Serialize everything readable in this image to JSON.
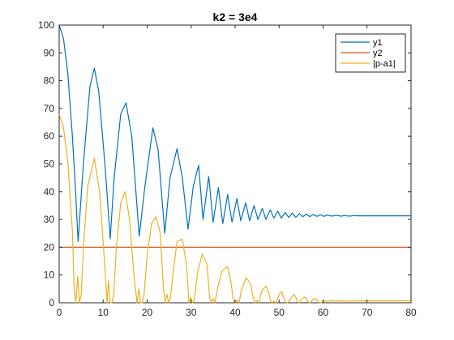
{
  "chart_data": {
    "type": "line",
    "title": "k2 = 3e4",
    "xlabel": "",
    "ylabel": "",
    "xlim": [
      0,
      80
    ],
    "ylim": [
      0,
      100
    ],
    "xticks": [
      0,
      10,
      20,
      30,
      40,
      50,
      60,
      70,
      80
    ],
    "yticks": [
      0,
      10,
      20,
      30,
      40,
      50,
      60,
      70,
      80,
      90,
      100
    ],
    "grid": false,
    "legend_location": "top-right",
    "series": [
      {
        "name": "y1",
        "color": "#0072BD",
        "x": [
          0,
          1,
          2,
          3,
          3.8,
          4.3,
          5.5,
          7,
          8,
          9,
          10.5,
          11.6,
          12.5,
          14,
          15.2,
          16.5,
          18.2,
          19.5,
          21.3,
          22.5,
          24,
          25.2,
          26.8,
          28,
          29.3,
          30.5,
          31.7,
          32.7,
          34,
          35,
          36.2,
          37.2,
          38.3,
          39.3,
          40.4,
          41.3,
          42.4,
          43.3,
          44.3,
          45.2,
          46.2,
          47,
          48,
          48.8,
          49.7,
          50.5,
          51.4,
          52.2,
          53,
          53.8,
          54.6,
          55.4,
          56.2,
          57,
          57.8,
          58.6,
          59.4,
          60.2,
          61,
          62,
          63,
          64,
          65,
          66,
          67,
          68,
          70,
          72,
          74,
          76,
          78,
          80
        ],
        "y": [
          100,
          95,
          82,
          60,
          38,
          22,
          50,
          78,
          84.5,
          76,
          48,
          23,
          45,
          68,
          72,
          60,
          24,
          42,
          63,
          55,
          25,
          45,
          55.5,
          45,
          26.5,
          42,
          49.5,
          30,
          45.5,
          29,
          41.5,
          28.5,
          39,
          29,
          37.5,
          29.5,
          36,
          29.5,
          35,
          30,
          34,
          30,
          33.5,
          30.5,
          33,
          30.5,
          32.5,
          30.7,
          32.3,
          30.8,
          32.1,
          31,
          31.9,
          31,
          31.8,
          31.1,
          31.7,
          31.1,
          31.6,
          31.2,
          31.5,
          31.2,
          31.4,
          31.2,
          31.4,
          31.3,
          31.3,
          31.3,
          31.3,
          31.3,
          31.3,
          31.3
        ]
      },
      {
        "name": "y2",
        "color": "#D95319",
        "x": [
          0,
          80
        ],
        "y": [
          20,
          20
        ]
      },
      {
        "name": "|p-a1|",
        "color": "#EDB120",
        "x": [
          0,
          1,
          2,
          3,
          3.4,
          3.8,
          4.2,
          4.6,
          5,
          5.6,
          6.5,
          8,
          9.2,
          10.3,
          10.9,
          11.2,
          11.6,
          12,
          12.4,
          13,
          14,
          15,
          16,
          17,
          17.7,
          18.1,
          18.5,
          18.9,
          19.3,
          20,
          21,
          22,
          23,
          23.7,
          24.1,
          24.5,
          24.9,
          25.3,
          26,
          26.8,
          28,
          29,
          29.5,
          29.9,
          30.3,
          30.7,
          31.5,
          32.5,
          33.6,
          34.2,
          34.6,
          35.0,
          35.4,
          36,
          37,
          38.3,
          39,
          39.6,
          40.1,
          40.5,
          40.9,
          41.5,
          42.5,
          43.5,
          44.1,
          44.6,
          45,
          45.4,
          46,
          47,
          47.6,
          48,
          48.4,
          48.8,
          49.3,
          50,
          50.6,
          51,
          51.4,
          51.8,
          52.2,
          52.8,
          53.4,
          53.8,
          54.2,
          54.6,
          55.2,
          55.8,
          56.2,
          56.6,
          57,
          57.6,
          58.2,
          58.6,
          59,
          59.5,
          60.3,
          61,
          62,
          63,
          64,
          66,
          68,
          70,
          72,
          74,
          76,
          78,
          80
        ],
        "y": [
          68,
          63,
          50,
          26,
          5,
          0,
          9.5,
          0,
          3,
          22,
          42,
          52,
          40,
          15,
          0,
          8,
          0,
          0,
          3,
          20,
          36,
          40,
          30,
          10,
          0,
          5,
          0,
          0,
          3,
          17,
          28.5,
          31,
          25,
          5,
          0,
          3,
          0,
          2,
          12,
          22,
          23,
          13,
          0,
          2,
          0,
          1,
          11,
          17.5,
          14,
          2,
          0,
          1.5,
          0,
          5,
          11.5,
          13,
          8,
          1,
          0,
          1,
          0,
          5,
          9,
          7,
          2,
          0,
          0.8,
          0,
          4,
          6,
          4,
          1,
          0,
          0.5,
          0,
          3,
          4,
          2,
          0.5,
          0,
          0.3,
          2,
          3,
          2,
          0.3,
          0,
          1.5,
          2,
          1.5,
          0.3,
          0,
          1,
          1.5,
          1,
          0.2,
          0,
          0.8,
          0.5,
          0.8,
          0.6,
          0.7,
          0.6,
          0.7,
          0.7,
          0.7,
          0.7,
          0.7,
          0.7,
          0.7
        ]
      }
    ]
  }
}
